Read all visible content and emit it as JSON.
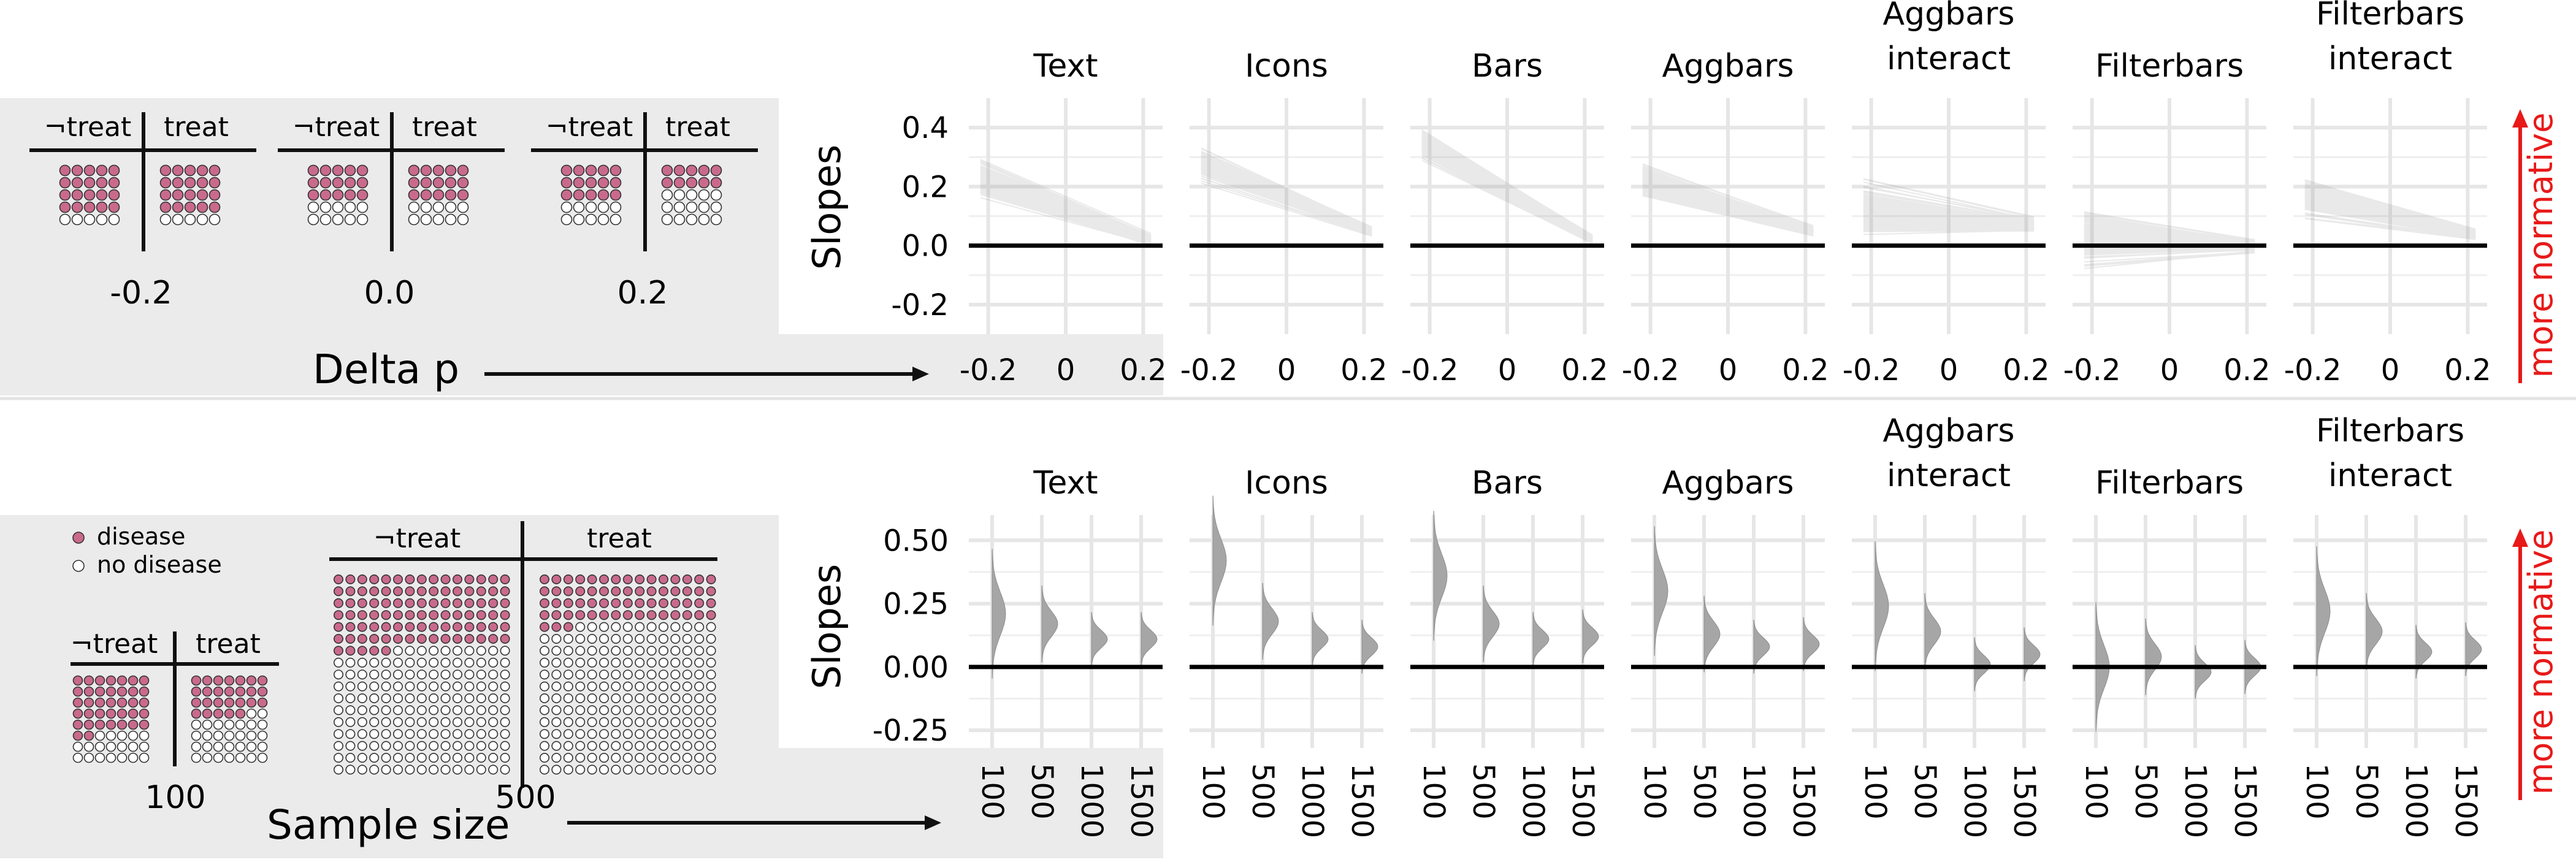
{
  "labels": {
    "not_treat": "¬treat",
    "treat": "treat",
    "slopes": "Slopes",
    "delta_p": "Delta p",
    "sample_size": "Sample size",
    "more_normative": "more normative",
    "legend_disease": "disease",
    "legend_no_disease": "no disease"
  },
  "colors": {
    "disease": "#c96a8c",
    "panel_bg": "#ebebeb",
    "grid": "#e6e6e6",
    "lines": "#9e9e9e",
    "violin": "#a6a6a6",
    "arrow": "#e81919"
  },
  "panels": [
    [
      "Text"
    ],
    [
      "Icons"
    ],
    [
      "Bars"
    ],
    [
      "Aggbars"
    ],
    [
      "Aggbars",
      "interact"
    ],
    [
      "Filterbars"
    ],
    [
      "Filterbars",
      "interact"
    ]
  ],
  "top_examples": [
    {
      "label": "-0.2",
      "left_disease": 20,
      "right_disease": 20
    },
    {
      "label": "0.0",
      "left_disease": 15,
      "right_disease": 15
    },
    {
      "label": "0.2",
      "left_disease": 15,
      "right_disease": 10
    }
  ],
  "bottom_examples": [
    {
      "label": "100"
    },
    {
      "label": "500"
    }
  ],
  "chart_data": [
    {
      "type": "line",
      "row": "top",
      "xlabel": "Delta p",
      "ylabel": "Slopes",
      "x_ticks": [
        "-0.2",
        "0",
        "0.2"
      ],
      "x_range": [
        -0.25,
        0.25
      ],
      "y_ticks": [
        "0.4",
        "0.2",
        "0.0",
        "-0.2"
      ],
      "ylim": [
        -0.3,
        0.5
      ],
      "series": [
        {
          "panel": "Text",
          "y_at_left": 0.23,
          "y_at_right": 0.02,
          "spread_left": 0.09,
          "spread_right": 0.025
        },
        {
          "panel": "Icons",
          "y_at_left": 0.28,
          "y_at_right": 0.05,
          "spread_left": 0.08,
          "spread_right": 0.02
        },
        {
          "panel": "Bars",
          "y_at_left": 0.34,
          "y_at_right": 0.02,
          "spread_left": 0.08,
          "spread_right": 0.02
        },
        {
          "panel": "Aggbars",
          "y_at_left": 0.22,
          "y_at_right": 0.05,
          "spread_left": 0.08,
          "spread_right": 0.02
        },
        {
          "panel": "Aggbars interact",
          "y_at_left": 0.12,
          "y_at_right": 0.07,
          "spread_left": 0.13,
          "spread_right": 0.03
        },
        {
          "panel": "Filterbars",
          "y_at_left": 0.03,
          "y_at_right": 0.0,
          "spread_left": 0.15,
          "spread_right": 0.03
        },
        {
          "panel": "Filterbars interact",
          "y_at_left": 0.17,
          "y_at_right": 0.04,
          "spread_left": 0.09,
          "spread_right": 0.02
        }
      ],
      "reference_line": 0.0
    },
    {
      "type": "violin",
      "row": "bottom",
      "xlabel": "Sample size",
      "ylabel": "Slopes",
      "categories": [
        "100",
        "500",
        "1000",
        "1500"
      ],
      "y_ticks": [
        "0.50",
        "0.25",
        "0.00",
        "-0.25"
      ],
      "ylim": [
        -0.32,
        0.6
      ],
      "series": [
        {
          "panel": "Text",
          "values": [
            0.21,
            0.17,
            0.11,
            0.11
          ]
        },
        {
          "panel": "Icons",
          "values": [
            0.42,
            0.18,
            0.11,
            0.08
          ]
        },
        {
          "panel": "Bars",
          "values": [
            0.36,
            0.17,
            0.11,
            0.12
          ]
        },
        {
          "panel": "Aggbars",
          "values": [
            0.3,
            0.13,
            0.08,
            0.09
          ]
        },
        {
          "panel": "Aggbars interact",
          "values": [
            0.24,
            0.14,
            0.01,
            0.05
          ]
        },
        {
          "panel": "Filterbars",
          "values": [
            0.0,
            0.04,
            -0.02,
            0.0
          ]
        },
        {
          "panel": "Filterbars interact",
          "values": [
            0.22,
            0.14,
            0.06,
            0.07
          ]
        }
      ],
      "reference_line": 0.0
    }
  ]
}
